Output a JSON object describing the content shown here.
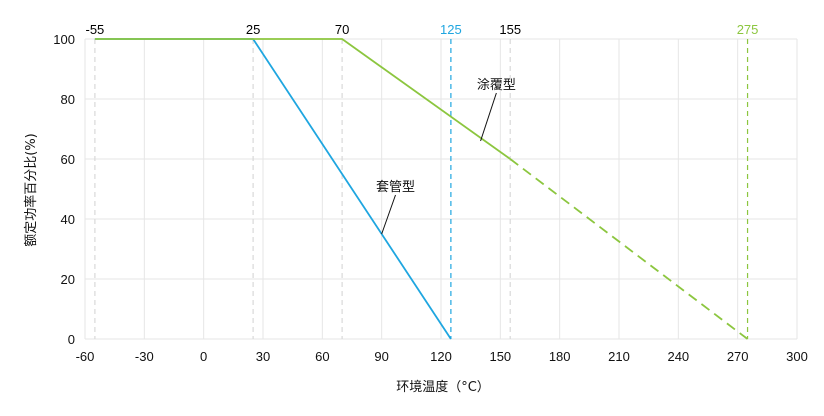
{
  "chart_data": {
    "type": "line",
    "xlabel": "环境温度（°C）",
    "ylabel": "额定功率百分比(%)",
    "xlim": [
      -60,
      300
    ],
    "ylim": [
      0,
      100
    ],
    "x_ticks": [
      -60,
      -30,
      0,
      30,
      60,
      90,
      120,
      150,
      180,
      210,
      240,
      270,
      300
    ],
    "x_tick_labels": [
      "-60",
      "-30",
      "0",
      "30",
      "60",
      "90",
      "120",
      "150",
      "180",
      "210",
      "240",
      "270",
      "300"
    ],
    "y_ticks": [
      0,
      20,
      40,
      60,
      80,
      100
    ],
    "y_tick_labels": [
      "0",
      "20",
      "40",
      "60",
      "80",
      "100"
    ],
    "grid": true,
    "markers": [
      {
        "x": -55,
        "label": "-55",
        "color": "#000000",
        "line_color": "#d9d9d9"
      },
      {
        "x": 25,
        "label": "25",
        "color": "#000000",
        "line_color": "#d9d9d9"
      },
      {
        "x": 70,
        "label": "70",
        "color": "#000000",
        "line_color": "#d9d9d9"
      },
      {
        "x": 125,
        "label": "125",
        "color": "#1fa6e0",
        "line_color": "#1fa6e0"
      },
      {
        "x": 155,
        "label": "155",
        "color": "#000000",
        "line_color": "#d9d9d9"
      },
      {
        "x": 275,
        "label": "275",
        "color": "#8cc63f",
        "line_color": "#8cc63f"
      }
    ],
    "series": [
      {
        "name": "套管型",
        "color": "#1fa6e0",
        "points": [
          [
            -55,
            100
          ],
          [
            25,
            100
          ],
          [
            125,
            0
          ]
        ],
        "dashed_points": [],
        "leader": {
          "from": [
            90,
            35
          ],
          "to": [
            97,
            48
          ]
        }
      },
      {
        "name": "涂覆型",
        "color": "#8cc63f",
        "points": [
          [
            -55,
            100
          ],
          [
            70,
            100
          ],
          [
            155,
            60
          ]
        ],
        "dashed_points": [
          [
            155,
            60
          ],
          [
            275,
            0
          ]
        ],
        "leader": {
          "from": [
            140,
            66
          ],
          "to": [
            148,
            82
          ]
        }
      }
    ]
  }
}
